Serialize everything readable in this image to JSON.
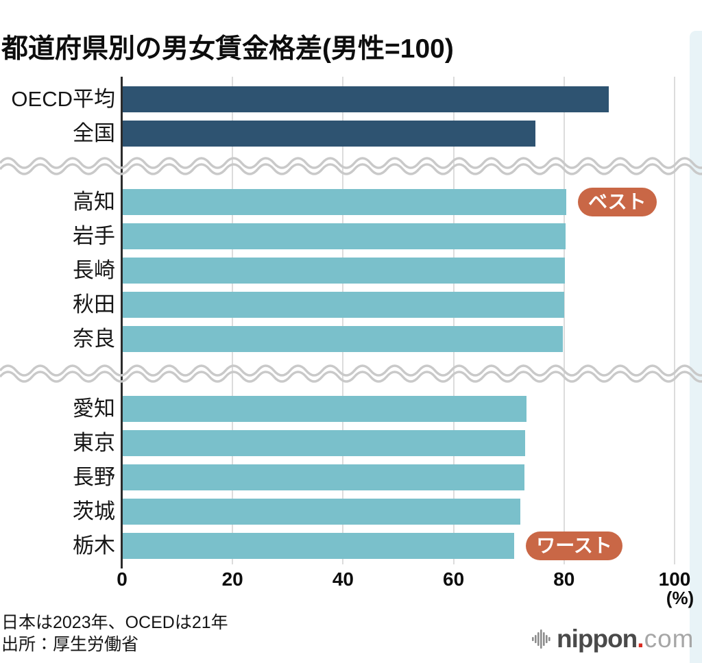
{
  "title": "都道府県別の男女賃金格差(男性=100)",
  "colors": {
    "navy": "#2e5371",
    "teal": "#7ac0cb",
    "badge_bg": "#c96746",
    "badge_text": "#ffffff",
    "gridline": "#dcdcdc",
    "axis": "#2b2b2b",
    "wave": "#c9c9c9",
    "page_band": "#e8f3f7"
  },
  "chart_data": {
    "type": "bar",
    "orientation": "horizontal",
    "title": "都道府県別の男女賃金格差(男性=100)",
    "xlim": [
      0,
      100
    ],
    "x_ticks": [
      0,
      20,
      40,
      60,
      80,
      100
    ],
    "x_unit": "(%)",
    "grid": true,
    "axis_breaks": 2,
    "groups": [
      {
        "name": "averages",
        "bar_color": "#2e5371",
        "rows": [
          {
            "label": "OECD平均",
            "value": 88.1
          },
          {
            "label": "全国",
            "value": 74.8
          }
        ]
      },
      {
        "name": "best-prefectures",
        "bar_color": "#7ac0cb",
        "rows": [
          {
            "label": "高知",
            "value": 80.4,
            "badge": "ベスト"
          },
          {
            "label": "岩手",
            "value": 80.3
          },
          {
            "label": "長崎",
            "value": 80.2
          },
          {
            "label": "秋田",
            "value": 80.0
          },
          {
            "label": "奈良",
            "value": 79.8
          }
        ]
      },
      {
        "name": "worst-prefectures",
        "bar_color": "#7ac0cb",
        "rows": [
          {
            "label": "愛知",
            "value": 73.2
          },
          {
            "label": "東京",
            "value": 73.0
          },
          {
            "label": "長野",
            "value": 72.8
          },
          {
            "label": "茨城",
            "value": 72.1
          },
          {
            "label": "栃木",
            "value": 71.0,
            "badge": "ワースト"
          }
        ]
      }
    ]
  },
  "footer": {
    "note": "日本は2023年、OCEDは21年",
    "source": "出所：厚生労働省"
  },
  "logo": {
    "icon": "waveform-icon",
    "name": "nippon",
    "dot": ".",
    "tld": "com"
  }
}
